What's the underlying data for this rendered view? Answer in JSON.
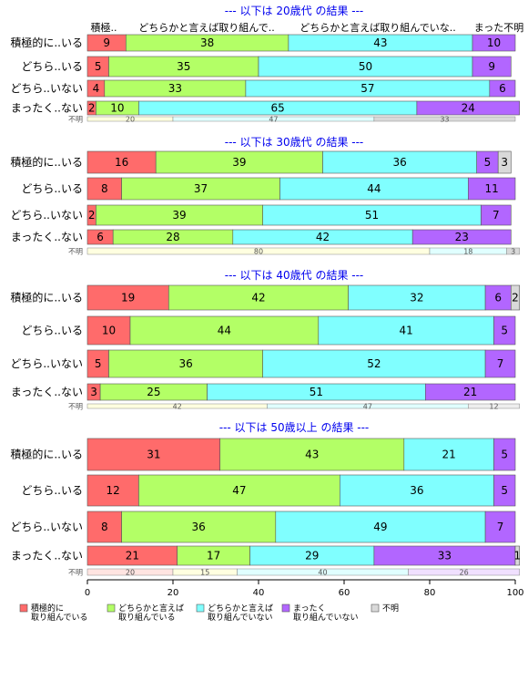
{
  "chart_data": {
    "type": "bar",
    "orientation": "horizontal",
    "stacked": true,
    "xlim": [
      0,
      100
    ],
    "xticks": [
      "0",
      "20",
      "40",
      "60",
      "80",
      "100"
    ],
    "header_labels": [
      "積極..",
      "どちらかと言えば取り組んで..",
      "どちらかと言えば取り組んでいな..",
      "まった不明"
    ],
    "legend": {
      "placement": "bottom",
      "entries": [
        {
          "label_lines": [
            "積極的に",
            "取り組んでいる"
          ],
          "color": "#ff6b6b"
        },
        {
          "label_lines": [
            "どちらかと言えば",
            "取り組んでいる"
          ],
          "color": "#b3ff66"
        },
        {
          "label_lines": [
            "どちらかと言えば",
            "取り組んでいない"
          ],
          "color": "#80ffff"
        },
        {
          "label_lines": [
            "まったく",
            "取り組んでいない"
          ],
          "color": "#b266ff"
        },
        {
          "label_lines": [
            "不明"
          ],
          "color": "#d9d9d9"
        }
      ]
    },
    "panels": [
      {
        "title": "--- 以下は 20歳代 の結果 ---",
        "rows": [
          {
            "label": "積極的に..いる",
            "values": [
              9,
              38,
              43,
              10,
              0
            ]
          },
          {
            "label": "どちら..いる",
            "values": [
              5,
              35,
              50,
              9,
              0
            ]
          },
          {
            "label": "どちら..いない",
            "values": [
              4,
              33,
              57,
              6,
              0
            ]
          },
          {
            "label": "まったく..ない",
            "values": [
              2,
              10,
              65,
              24,
              0
            ]
          }
        ],
        "unknown": {
          "label": "不明",
          "values": [
            20,
            47,
            33
          ],
          "colors": [
            "#ffffe0",
            "#e0ffff",
            "#d9d9d9"
          ]
        }
      },
      {
        "title": "--- 以下は 30歳代 の結果 ---",
        "rows": [
          {
            "label": "積極的に..いる",
            "values": [
              16,
              39,
              36,
              5,
              3
            ]
          },
          {
            "label": "どちら..いる",
            "values": [
              8,
              37,
              44,
              11,
              0
            ]
          },
          {
            "label": "どちら..いない",
            "values": [
              2,
              39,
              51,
              7,
              0
            ]
          },
          {
            "label": "まったく..ない",
            "values": [
              6,
              28,
              42,
              23,
              0
            ]
          }
        ],
        "unknown": {
          "label": "不明",
          "values": [
            80,
            18,
            3
          ],
          "colors": [
            "#ffffe0",
            "#e0ffff",
            "#d9d9d9"
          ]
        }
      },
      {
        "title": "--- 以下は 40歳代 の結果 ---",
        "rows": [
          {
            "label": "積極的に..いる",
            "values": [
              19,
              42,
              32,
              6,
              2
            ]
          },
          {
            "label": "どちら..いる",
            "values": [
              10,
              44,
              41,
              5,
              0
            ]
          },
          {
            "label": "どちら..いない",
            "values": [
              5,
              36,
              52,
              7,
              0
            ]
          },
          {
            "label": "まったく..ない",
            "values": [
              3,
              25,
              51,
              21,
              0
            ]
          }
        ],
        "unknown": {
          "label": "不明",
          "values": [
            42,
            47,
            12
          ],
          "colors": [
            "#ffffe0",
            "#e0ffff",
            "#eeeeee"
          ]
        }
      },
      {
        "title": "--- 以下は 50歳以上 の結果 ---",
        "rows": [
          {
            "label": "積極的に..いる",
            "values": [
              31,
              43,
              21,
              5,
              0
            ]
          },
          {
            "label": "どちら..いる",
            "values": [
              12,
              47,
              36,
              5,
              0
            ]
          },
          {
            "label": "どちら..いない",
            "values": [
              8,
              36,
              49,
              7,
              0
            ]
          },
          {
            "label": "まったく..ない",
            "values": [
              21,
              17,
              29,
              33,
              1
            ]
          }
        ],
        "unknown": {
          "label": "不明",
          "values": [
            20,
            15,
            40,
            26
          ],
          "colors": [
            "#ffe4e1",
            "#ffffe0",
            "#e0ffff",
            "#f0e0ff"
          ]
        }
      }
    ]
  }
}
